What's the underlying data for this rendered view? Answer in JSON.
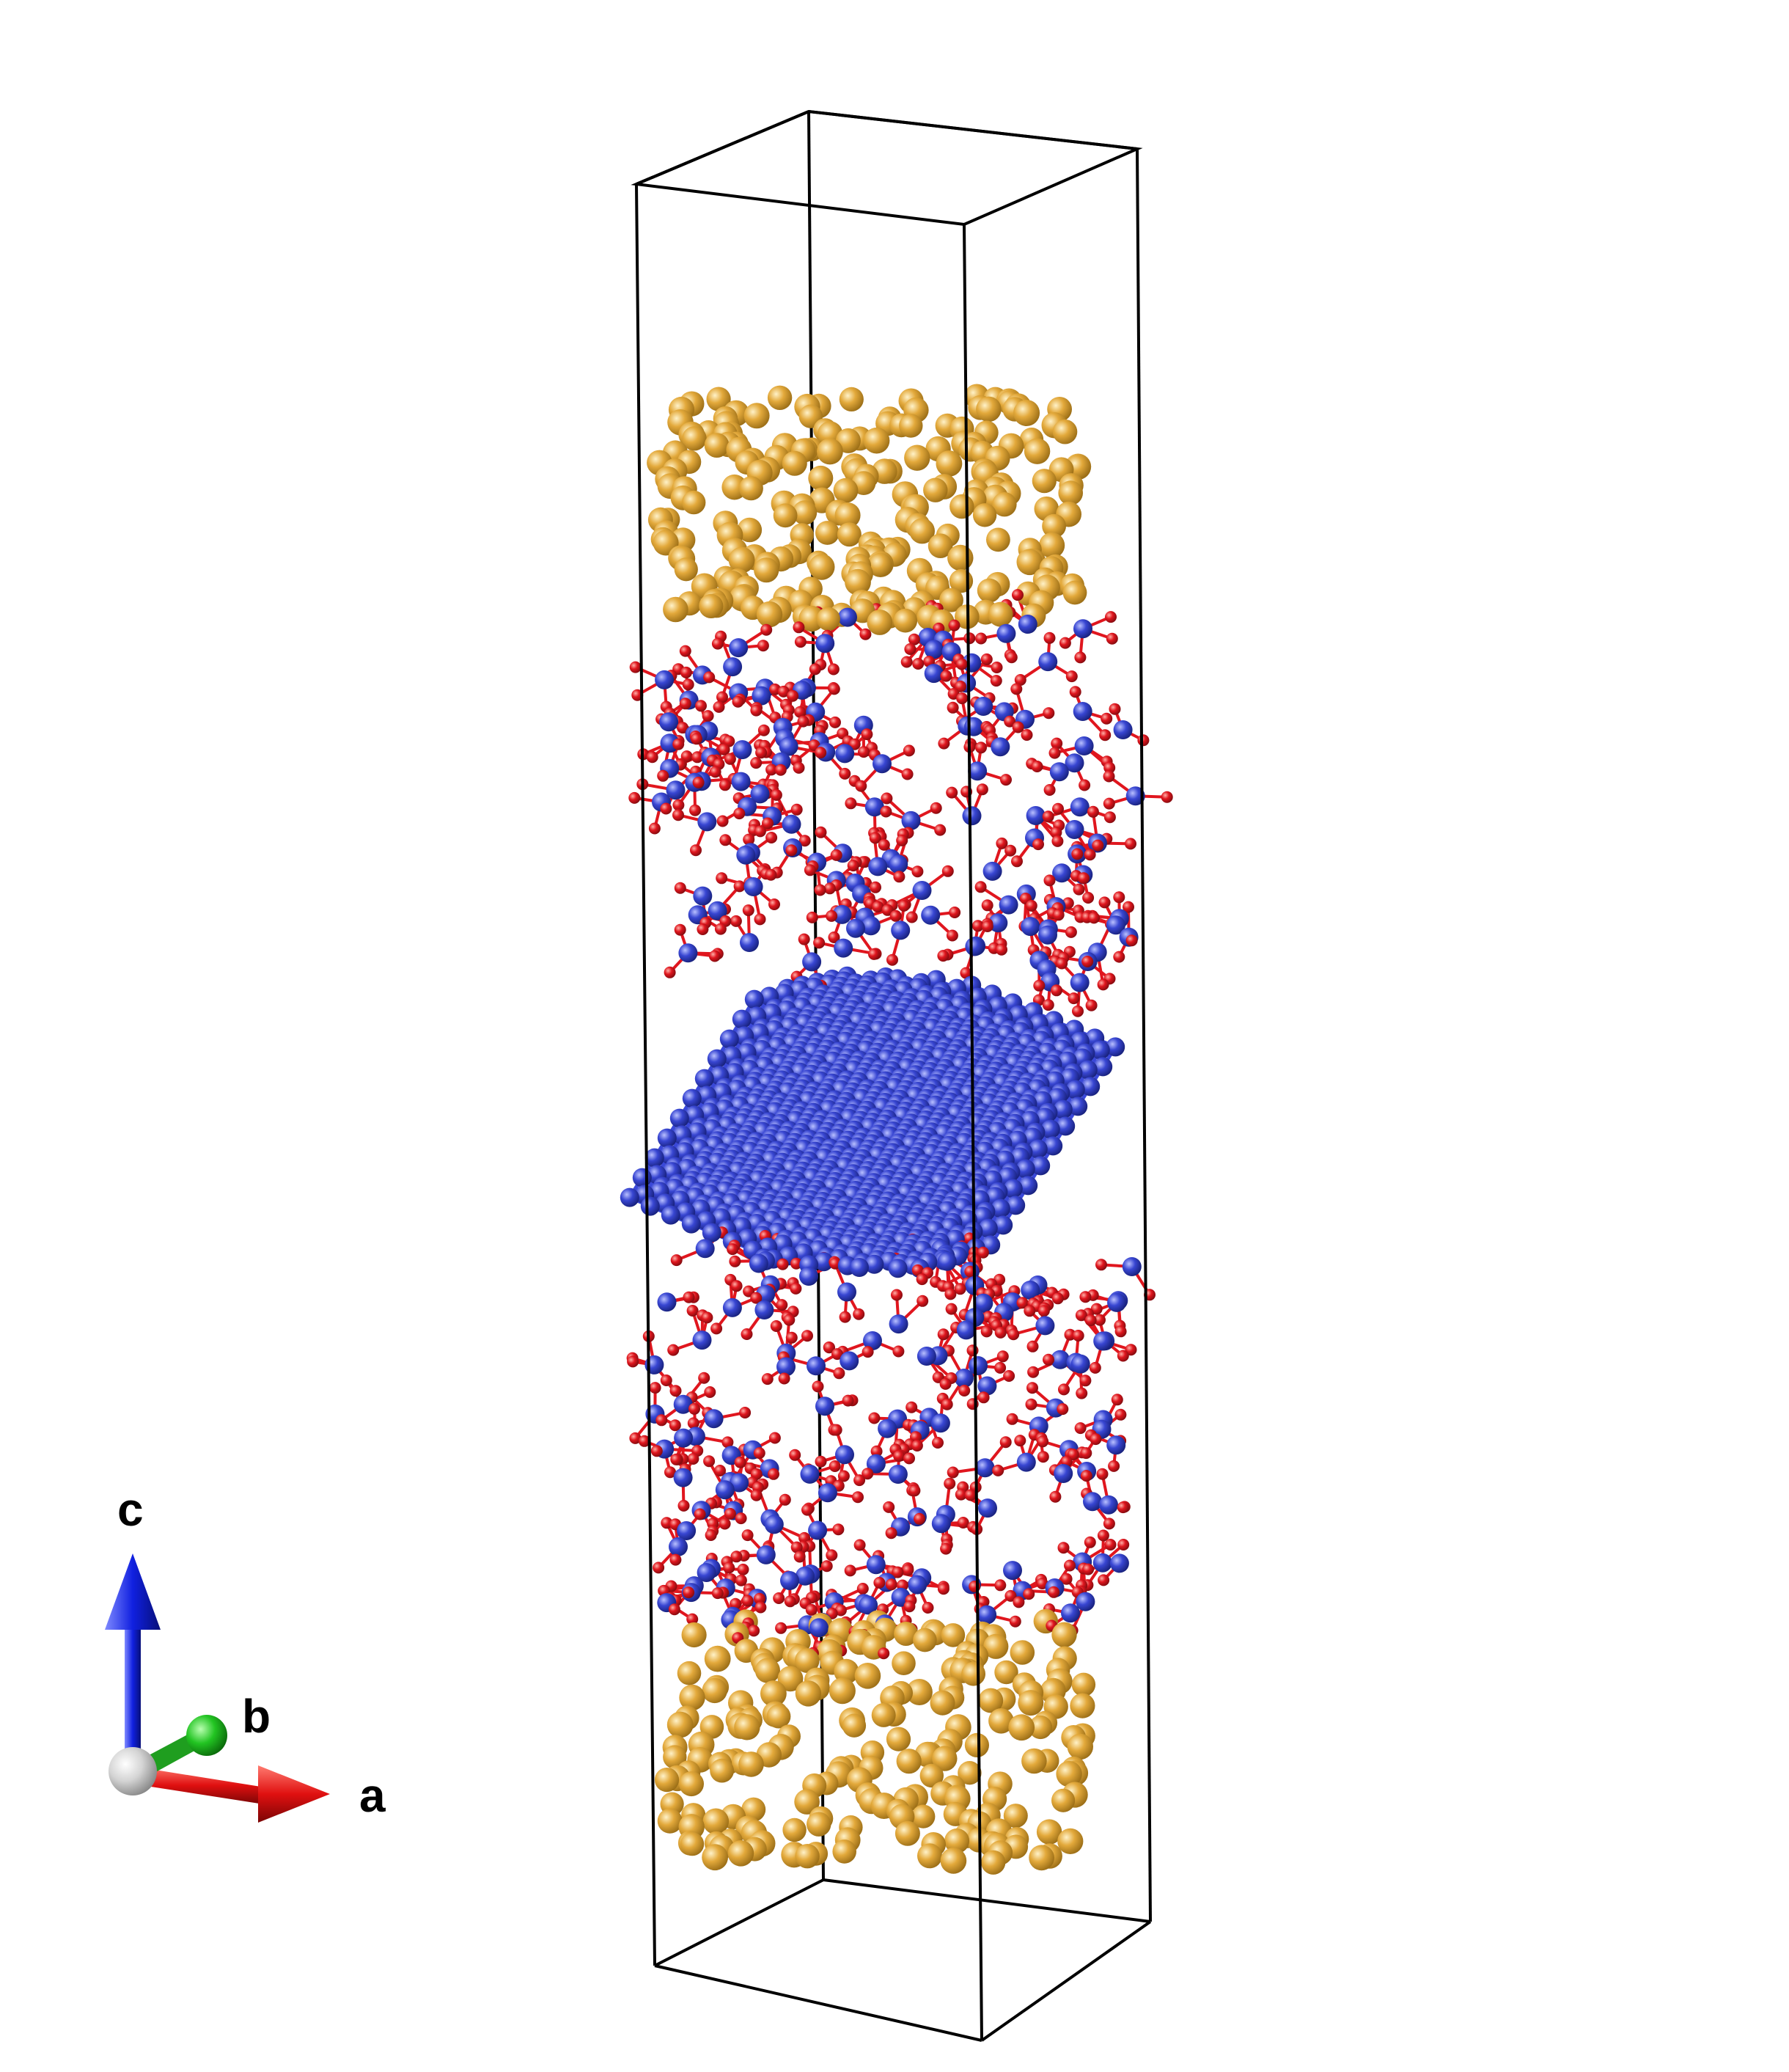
{
  "axes": {
    "a_label": "a",
    "b_label": "b",
    "c_label": "c"
  },
  "colors": {
    "gold_atom": "#e3a93b",
    "blue_atom": "#3846d2",
    "red_atom": "#e0161e",
    "bond_blue": "#3a48d8",
    "bond_red": "#e0161e",
    "cell_line": "#000000",
    "axis_a": "#e01010",
    "axis_b": "#18c018",
    "axis_c": "#1020e0",
    "origin": "#cccccc"
  },
  "atoms": {
    "top_gold_layer": "gold",
    "amorphous_oxide_upper": "blue-red",
    "crystalline_core": "blue",
    "amorphous_oxide_lower": "blue-red",
    "bottom_gold_layer": "gold"
  }
}
